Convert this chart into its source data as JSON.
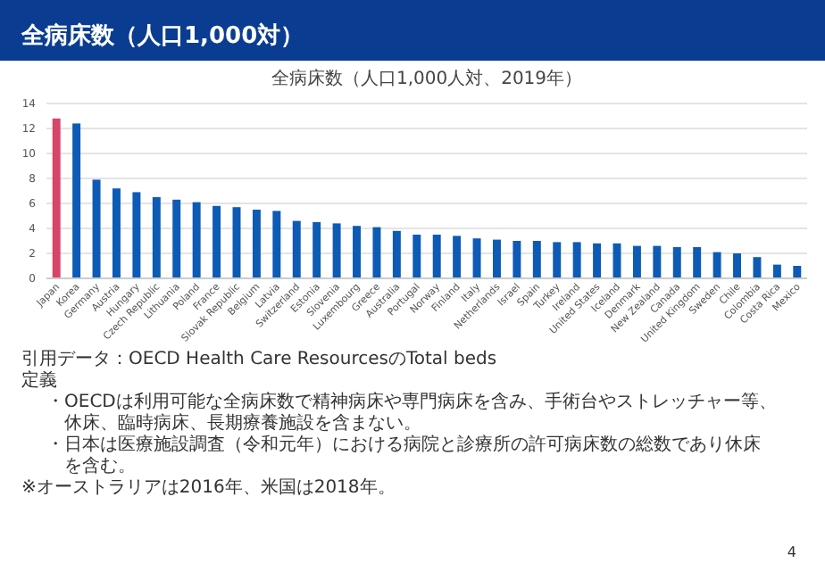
{
  "chart_data": {
    "type": "bar",
    "title": "全病床数（人口1,000対）",
    "subtitle": "全病床数（人口1,000人対、2019年）",
    "categories": [
      "Japan",
      "Korea",
      "Germany",
      "Austria",
      "Hungary",
      "Czech Republic",
      "Lithuania",
      "Poland",
      "France",
      "Slovak Republic",
      "Belgium",
      "Latvia",
      "Switzerland",
      "Estonia",
      "Slovenia",
      "Luxembourg",
      "Greece",
      "Australia",
      "Portugal",
      "Norway",
      "Finland",
      "Italy",
      "Netherlands",
      "Israel",
      "Spain",
      "Turkey",
      "Ireland",
      "United States",
      "Iceland",
      "Denmark",
      "New Zealand",
      "Canada",
      "United Kingdom",
      "Sweden",
      "Chile",
      "Colombia",
      "Costa Rica",
      "Mexico"
    ],
    "values": [
      12.8,
      12.4,
      7.9,
      7.2,
      6.9,
      6.5,
      6.3,
      6.1,
      5.8,
      5.7,
      5.5,
      5.4,
      4.6,
      4.5,
      4.4,
      4.2,
      4.1,
      3.8,
      3.5,
      3.5,
      3.4,
      3.2,
      3.1,
      3.0,
      3.0,
      2.9,
      2.9,
      2.8,
      2.8,
      2.6,
      2.6,
      2.5,
      2.5,
      2.1,
      2.0,
      1.7,
      1.1,
      1.0
    ],
    "colors": [
      "#d6456a",
      "#0d5bb5",
      "#0d5bb5",
      "#0d5bb5",
      "#0d5bb5",
      "#0d5bb5",
      "#0d5bb5",
      "#0d5bb5",
      "#0d5bb5",
      "#0d5bb5",
      "#0d5bb5",
      "#0d5bb5",
      "#0d5bb5",
      "#0d5bb5",
      "#0d5bb5",
      "#0d5bb5",
      "#0d5bb5",
      "#0d5bb5",
      "#0d5bb5",
      "#0d5bb5",
      "#0d5bb5",
      "#0d5bb5",
      "#0d5bb5",
      "#0d5bb5",
      "#0d5bb5",
      "#0d5bb5",
      "#0d5bb5",
      "#0d5bb5",
      "#0d5bb5",
      "#0d5bb5",
      "#0d5bb5",
      "#0d5bb5",
      "#0d5bb5",
      "#0d5bb5",
      "#0d5bb5",
      "#0d5bb5",
      "#0d5bb5",
      "#0d5bb5"
    ],
    "ylim": [
      0,
      14
    ],
    "yticks": [
      0,
      2,
      4,
      6,
      8,
      10,
      12,
      14
    ],
    "grid": "y",
    "annotations": [
      "引用データ：OECD Health Care ResourcesのTotal beds",
      "定義",
      "・OECDは利用可能な全病床数で精神病床や専門病床を含み、手術台やストレッチャー等、休床、臨時病床、長期療養施設を含まない。",
      "・日本は医療施設調査（令和元年）における病院と診療所の許可病床数の総数であり休床を含む。",
      "※オーストラリアは2016年、米国は2018年。",
      "4"
    ]
  }
}
